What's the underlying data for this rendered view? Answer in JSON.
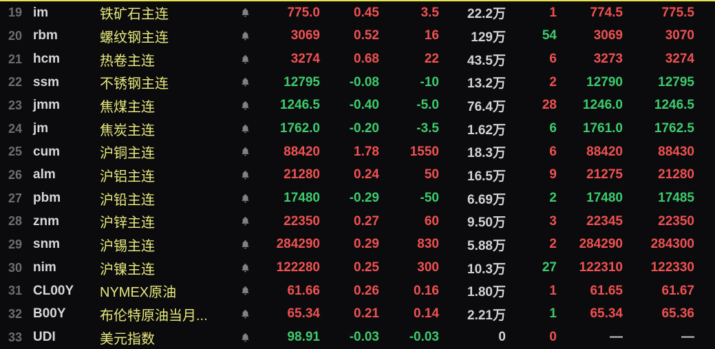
{
  "colors": {
    "background": "#0b0b0d",
    "top_border": "#e6e34c",
    "up_red": "#f05152",
    "down_green": "#3ecb6e",
    "name_yellow": "#e8e87f",
    "row_number_gray": "#6e6e72",
    "symbol_white": "#d7d7db",
    "neutral_white": "#d4d4d8",
    "bell_gray": "#818185"
  },
  "icons": {
    "alert_bell": "bell-icon"
  },
  "table": {
    "rows": [
      {
        "num": "19",
        "symbol": "im",
        "name": "铁矿石主连",
        "price": "775.0",
        "pct": "0.45",
        "chg": "3.5",
        "vol": "22.2万",
        "lots": "1",
        "bid": "774.5",
        "ask": "775.5",
        "dir": "up",
        "lots_dir": "up"
      },
      {
        "num": "20",
        "symbol": "rbm",
        "name": "螺纹钢主连",
        "price": "3069",
        "pct": "0.52",
        "chg": "16",
        "vol": "129万",
        "lots": "54",
        "bid": "3069",
        "ask": "3070",
        "dir": "up",
        "lots_dir": "down"
      },
      {
        "num": "21",
        "symbol": "hcm",
        "name": "热卷主连",
        "price": "3274",
        "pct": "0.68",
        "chg": "22",
        "vol": "43.5万",
        "lots": "6",
        "bid": "3273",
        "ask": "3274",
        "dir": "up",
        "lots_dir": "up"
      },
      {
        "num": "22",
        "symbol": "ssm",
        "name": "不锈钢主连",
        "price": "12795",
        "pct": "-0.08",
        "chg": "-10",
        "vol": "13.2万",
        "lots": "2",
        "bid": "12790",
        "ask": "12795",
        "dir": "down",
        "lots_dir": "up"
      },
      {
        "num": "23",
        "symbol": "jmm",
        "name": "焦煤主连",
        "price": "1246.5",
        "pct": "-0.40",
        "chg": "-5.0",
        "vol": "76.4万",
        "lots": "28",
        "bid": "1246.0",
        "ask": "1246.5",
        "dir": "down",
        "lots_dir": "up"
      },
      {
        "num": "24",
        "symbol": "jm",
        "name": "焦炭主连",
        "price": "1762.0",
        "pct": "-0.20",
        "chg": "-3.5",
        "vol": "1.62万",
        "lots": "6",
        "bid": "1761.0",
        "ask": "1762.5",
        "dir": "down",
        "lots_dir": "down"
      },
      {
        "num": "25",
        "symbol": "cum",
        "name": "沪铜主连",
        "price": "88420",
        "pct": "1.78",
        "chg": "1550",
        "vol": "18.3万",
        "lots": "6",
        "bid": "88420",
        "ask": "88430",
        "dir": "up",
        "lots_dir": "up"
      },
      {
        "num": "26",
        "symbol": "alm",
        "name": "沪铝主连",
        "price": "21280",
        "pct": "0.24",
        "chg": "50",
        "vol": "16.5万",
        "lots": "9",
        "bid": "21275",
        "ask": "21280",
        "dir": "up",
        "lots_dir": "up"
      },
      {
        "num": "27",
        "symbol": "pbm",
        "name": "沪铅主连",
        "price": "17480",
        "pct": "-0.29",
        "chg": "-50",
        "vol": "6.69万",
        "lots": "2",
        "bid": "17480",
        "ask": "17485",
        "dir": "down",
        "lots_dir": "down"
      },
      {
        "num": "28",
        "symbol": "znm",
        "name": "沪锌主连",
        "price": "22350",
        "pct": "0.27",
        "chg": "60",
        "vol": "9.50万",
        "lots": "3",
        "bid": "22345",
        "ask": "22350",
        "dir": "up",
        "lots_dir": "up"
      },
      {
        "num": "29",
        "symbol": "snm",
        "name": "沪锡主连",
        "price": "284290",
        "pct": "0.29",
        "chg": "830",
        "vol": "5.88万",
        "lots": "2",
        "bid": "284290",
        "ask": "284300",
        "dir": "up",
        "lots_dir": "up"
      },
      {
        "num": "30",
        "symbol": "nim",
        "name": "沪镍主连",
        "price": "122280",
        "pct": "0.25",
        "chg": "300",
        "vol": "10.3万",
        "lots": "27",
        "bid": "122310",
        "ask": "122330",
        "dir": "up",
        "lots_dir": "down"
      },
      {
        "num": "31",
        "symbol": "CL00Y",
        "name": "NYMEX原油",
        "price": "61.66",
        "pct": "0.26",
        "chg": "0.16",
        "vol": "1.80万",
        "lots": "1",
        "bid": "61.65",
        "ask": "61.67",
        "dir": "up",
        "lots_dir": "up"
      },
      {
        "num": "32",
        "symbol": "B00Y",
        "name": "布伦特原油当月...",
        "price": "65.34",
        "pct": "0.21",
        "chg": "0.14",
        "vol": "2.21万",
        "lots": "1",
        "bid": "65.34",
        "ask": "65.36",
        "dir": "up",
        "lots_dir": "down"
      },
      {
        "num": "33",
        "symbol": "UDI",
        "name": "美元指数",
        "price": "98.91",
        "pct": "-0.03",
        "chg": "-0.03",
        "vol": "0",
        "lots": "0",
        "bid": "—",
        "ask": "—",
        "dir": "down",
        "lots_dir": "up",
        "bid_dir": "flat",
        "ask_dir": "flat"
      }
    ]
  }
}
